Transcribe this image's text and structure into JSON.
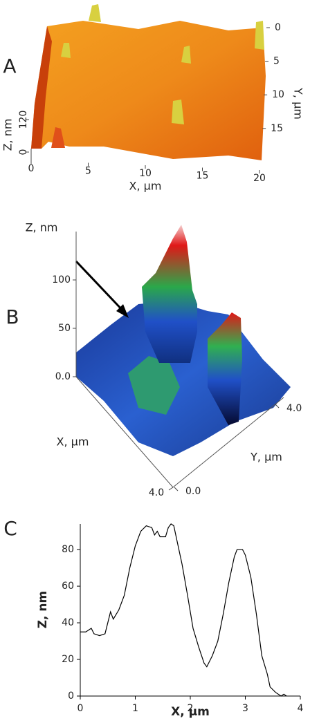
{
  "chart_data": [
    {
      "type": "surface",
      "panel_label": "A",
      "xlabel": "X, μm",
      "ylabel": "Y, μm",
      "zlabel": "Z, nm",
      "xlim": [
        0,
        20
      ],
      "xticks": [
        0,
        5,
        10,
        15,
        20
      ],
      "ylim": [
        0,
        18
      ],
      "yticks": [
        0,
        5,
        10,
        15
      ],
      "zlim": [
        0,
        120
      ],
      "zticks": [
        0,
        120
      ]
    },
    {
      "type": "surface",
      "panel_label": "B",
      "xlabel": "X, μm",
      "ylabel": "Y, μm",
      "zlabel": "Z, nm",
      "xlim": [
        0,
        4
      ],
      "xticks": [
        {
          "value": 4,
          "label": "4.0"
        }
      ],
      "ylim": [
        0,
        4
      ],
      "yticks": [
        {
          "value": 0,
          "label": "0.0"
        },
        {
          "value": 4,
          "label": "4.0"
        }
      ],
      "zlim": [
        0,
        150
      ],
      "zticks": [
        {
          "value": 0,
          "label": "0.0"
        },
        50,
        100
      ]
    },
    {
      "type": "line",
      "panel_label": "C",
      "xlabel": "X, μm",
      "ylabel": "Z, nm",
      "color": "#000000",
      "xlim": [
        0,
        4
      ],
      "xticks": [
        0,
        1,
        2,
        3,
        4
      ],
      "ylim": [
        0,
        94
      ],
      "yticks": [
        0,
        20,
        40,
        60,
        80
      ],
      "x": [
        0,
        0.1,
        0.15,
        0.2,
        0.25,
        0.35,
        0.45,
        0.5,
        0.55,
        0.6,
        0.7,
        0.8,
        0.9,
        1.0,
        1.1,
        1.2,
        1.3,
        1.35,
        1.4,
        1.45,
        1.55,
        1.6,
        1.65,
        1.7,
        1.75,
        1.85,
        1.95,
        2.05,
        2.15,
        2.25,
        2.3,
        2.4,
        2.5,
        2.6,
        2.7,
        2.8,
        2.85,
        2.95,
        3.0,
        3.1,
        3.2,
        3.3,
        3.4,
        3.45,
        3.55,
        3.65,
        3.7,
        3.75
      ],
      "values": [
        35,
        35,
        36,
        37,
        34,
        33,
        34,
        40,
        46,
        42,
        47,
        55,
        70,
        82,
        90,
        93,
        92,
        88,
        90,
        87,
        87,
        92,
        94,
        93,
        86,
        72,
        55,
        37,
        27,
        18,
        16,
        22,
        30,
        45,
        62,
        76,
        80,
        80,
        77,
        65,
        45,
        22,
        12,
        5,
        2,
        0,
        1,
        0
      ]
    }
  ]
}
